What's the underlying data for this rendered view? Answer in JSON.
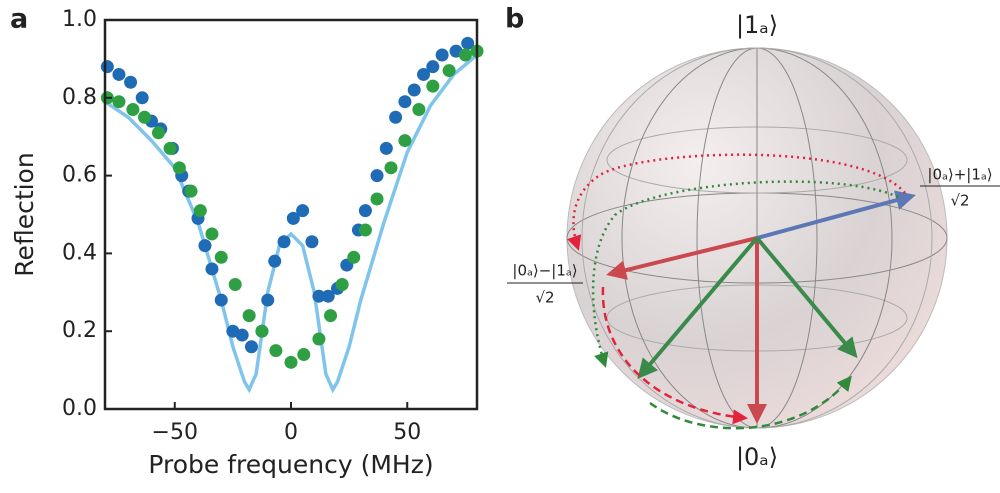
{
  "chart_data": [
    {
      "type": "scatter",
      "panel_label": "a",
      "xlabel": "Probe frequency (MHz)",
      "ylabel": "Reflection",
      "xlim": [
        -80,
        80
      ],
      "ylim": [
        0,
        1
      ],
      "xticks": [
        {
          "value": -50,
          "label": "−50"
        },
        0,
        50
      ],
      "yticks": [
        {
          "value": 0,
          "label": "0.0"
        },
        {
          "value": 0.2,
          "label": "0.2"
        },
        {
          "value": 0.4,
          "label": "0.4"
        },
        {
          "value": 0.6,
          "label": "0.6"
        },
        {
          "value": 0.8,
          "label": "0.8"
        },
        {
          "value": 1,
          "label": "1.0"
        }
      ],
      "series": [
        {
          "style": "line",
          "color": "#7fc4ec",
          "x": [
            -80,
            -70,
            -60,
            -50,
            -40,
            -30,
            -25,
            -20,
            -18,
            -15,
            -10,
            -5,
            0,
            5,
            10,
            15,
            18,
            20,
            25,
            30,
            40,
            50,
            60,
            70,
            80
          ],
          "values": [
            0.79,
            0.75,
            0.69,
            0.62,
            0.48,
            0.28,
            0.16,
            0.07,
            0.05,
            0.09,
            0.3,
            0.42,
            0.45,
            0.42,
            0.3,
            0.09,
            0.05,
            0.07,
            0.16,
            0.28,
            0.48,
            0.66,
            0.78,
            0.86,
            0.91
          ]
        },
        {
          "style": "markers",
          "color": "#1f6bb5",
          "x": [
            -79,
            -74,
            -69,
            -64,
            -60,
            -56,
            -51,
            -47,
            -44,
            -40,
            -37,
            -34,
            -30,
            -25,
            -21,
            -17,
            -12.5,
            -10,
            -7,
            -3,
            1,
            5,
            9,
            12,
            16,
            20,
            24,
            29,
            32,
            37,
            41,
            45,
            49,
            53,
            57,
            61,
            65,
            71,
            76
          ],
          "values": [
            0.88,
            0.86,
            0.84,
            0.8,
            0.74,
            0.72,
            0.67,
            0.6,
            0.56,
            0.49,
            0.42,
            0.36,
            0.28,
            0.2,
            0.19,
            0.16,
            0.2,
            0.28,
            0.38,
            0.43,
            0.49,
            0.51,
            0.43,
            0.29,
            0.29,
            0.31,
            0.37,
            0.46,
            0.51,
            0.6,
            0.67,
            0.75,
            0.79,
            0.82,
            0.86,
            0.88,
            0.91,
            0.92,
            0.94
          ]
        },
        {
          "style": "markers",
          "color": "#2ea043",
          "x": [
            -79,
            -74,
            -68,
            -63,
            -57,
            -52,
            -48,
            -43,
            -39,
            -34,
            -30,
            -24,
            -18,
            -12.5,
            -6.5,
            0,
            5.5,
            12,
            17,
            22,
            27,
            32,
            37,
            43,
            49,
            55,
            61,
            68,
            75,
            80
          ],
          "values": [
            0.8,
            0.79,
            0.77,
            0.75,
            0.71,
            0.67,
            0.62,
            0.56,
            0.51,
            0.45,
            0.39,
            0.32,
            0.24,
            0.2,
            0.15,
            0.12,
            0.14,
            0.18,
            0.24,
            0.32,
            0.39,
            0.46,
            0.54,
            0.62,
            0.69,
            0.77,
            0.83,
            0.87,
            0.91,
            0.92
          ]
        }
      ]
    },
    {
      "type": "bloch",
      "panel_label": "b",
      "labels": {
        "top": "|1ₐ⟩",
        "bottom": "|0ₐ⟩",
        "plus": {
          "numerator": "|0ₐ⟩+|1ₐ⟩",
          "denominator": "√2"
        },
        "minus": {
          "numerator": "|0ₐ⟩−|1ₐ⟩",
          "denominator": "√2"
        }
      }
    }
  ]
}
